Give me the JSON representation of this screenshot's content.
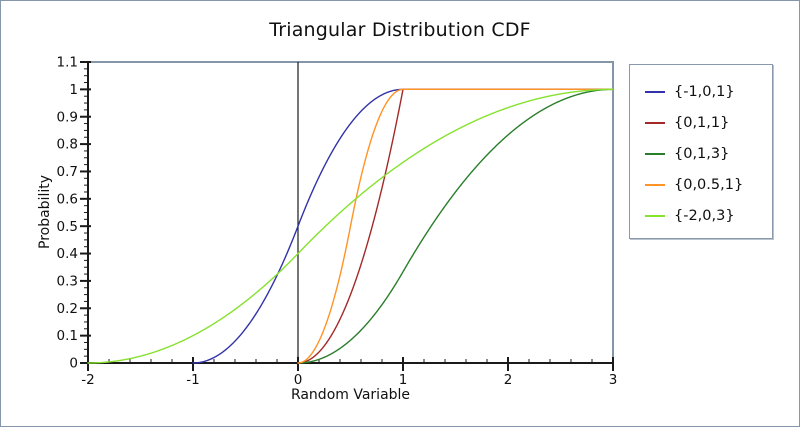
{
  "page": {
    "background": "#ffffff",
    "border_color": "#8696aa"
  },
  "chart_data": {
    "type": "line",
    "title": "Triangular Distribution CDF",
    "xlabel": "Random Variable",
    "ylabel": "Probability",
    "xlim": [
      -2,
      3
    ],
    "ylim": [
      0,
      1.1
    ],
    "x_ticks": [
      -2,
      -1,
      0,
      1,
      2,
      3
    ],
    "x_tick_labels": [
      "-2",
      "-1",
      "0",
      "1",
      "2",
      "3"
    ],
    "y_ticks": [
      0,
      0.1,
      0.2,
      0.3,
      0.4,
      0.5,
      0.6,
      0.7,
      0.8,
      0.9,
      1,
      1.1
    ],
    "y_tick_labels": [
      "0",
      "0.1",
      "0.2",
      "0.3",
      "0.4",
      "0.5",
      "0.6",
      "0.7",
      "0.8",
      "0.9",
      "1",
      "1.1"
    ],
    "x_minor_step": 0.2,
    "y_minor_step": 0.025,
    "grid": false,
    "zero_axis_line": true,
    "legend_position": "right",
    "frame_color": "#8696aa",
    "axis_color": "#1a1a1a",
    "curve_model": "triangular_cdf",
    "x_samples": [
      -2,
      -1.5,
      -1,
      -0.5,
      0,
      0.5,
      1,
      1.5,
      2,
      2.5,
      3
    ],
    "series": [
      {
        "label": "{-1,0,1}",
        "color": "#3232aa",
        "params": [
          -1,
          0,
          1
        ],
        "values": [
          0,
          0,
          0,
          0.125,
          0.5,
          0.875,
          1,
          1,
          1,
          1,
          1
        ]
      },
      {
        "label": "{0,1,1}",
        "color": "#a32929",
        "params": [
          0,
          1,
          1
        ],
        "values": [
          0,
          0,
          0,
          0,
          0,
          0.25,
          1,
          1,
          1,
          1,
          1
        ]
      },
      {
        "label": "{0,1,3}",
        "color": "#2a7e2a",
        "params": [
          0,
          1,
          3
        ],
        "values": [
          0,
          0,
          0,
          0,
          0,
          0.083,
          0.333,
          0.625,
          0.833,
          0.958,
          1
        ]
      },
      {
        "label": "{0,0.5,1}",
        "color": "#ff9326",
        "params": [
          0,
          0.5,
          1
        ],
        "values": [
          0,
          0,
          0,
          0,
          0,
          0.5,
          1,
          1,
          1,
          1,
          1
        ]
      },
      {
        "label": "{-2,0,3}",
        "color": "#86e22e",
        "params": [
          -2,
          0,
          3
        ],
        "values": [
          0,
          0.025,
          0.1,
          0.225,
          0.4,
          0.583,
          0.733,
          0.85,
          0.933,
          0.983,
          1
        ]
      }
    ]
  }
}
